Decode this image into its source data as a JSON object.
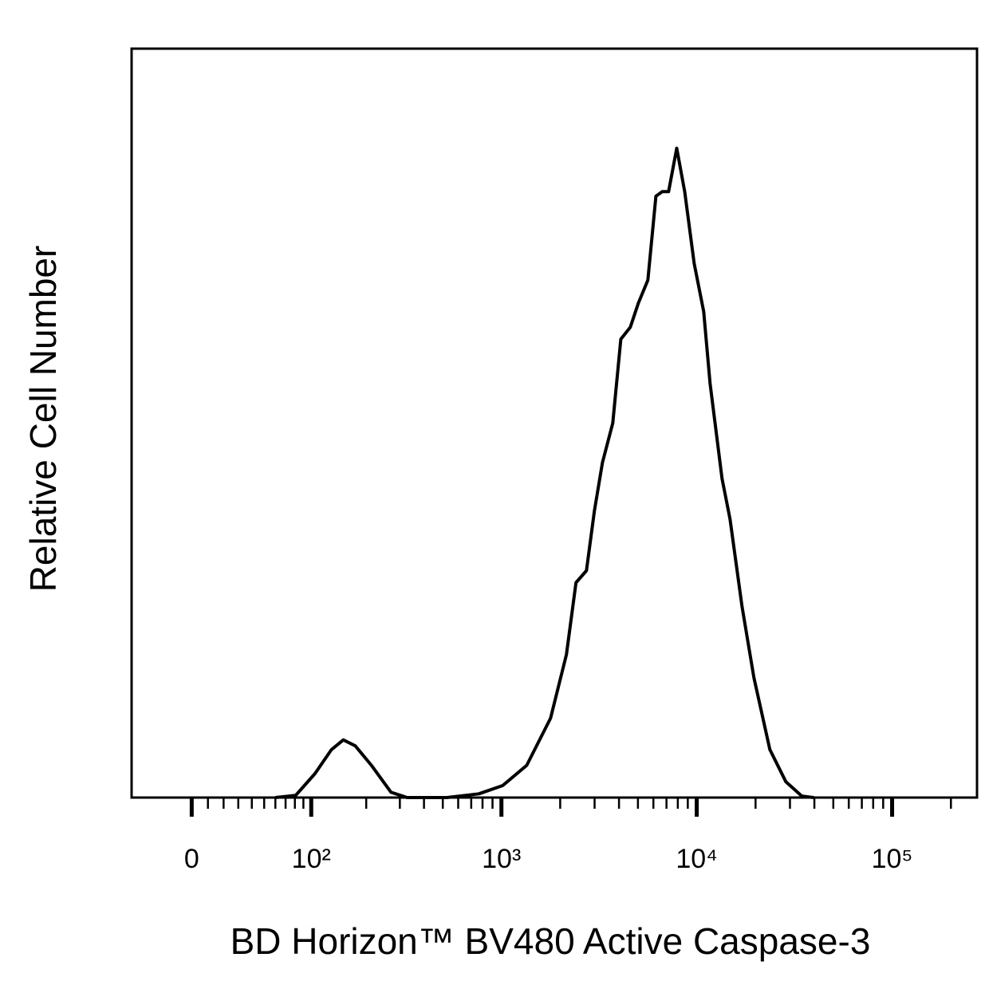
{
  "chart_data": {
    "type": "line",
    "x_axis_label": "BD Horizon™ BV480 Active Caspase-3",
    "y_axis_label": "Relative Cell Number",
    "xscale": "asinh",
    "asinh_cofactor": 52,
    "xlim": [
      -40,
      272000
    ],
    "ylim": [
      0,
      100
    ],
    "xticks": [
      0,
      {
        "value": 100,
        "label": "10²"
      },
      {
        "value": 1000,
        "label": "10³"
      },
      {
        "value": 10000,
        "label": "10⁴"
      },
      {
        "value": 100000,
        "label": "10⁵"
      }
    ],
    "xminorticks": [
      10,
      20,
      30,
      40,
      50,
      60,
      70,
      80,
      90,
      200,
      300,
      400,
      500,
      600,
      700,
      800,
      900,
      2000,
      3000,
      4000,
      5000,
      6000,
      7000,
      8000,
      9000,
      20000,
      30000,
      40000,
      50000,
      60000,
      70000,
      80000,
      90000,
      200000
    ],
    "series": [
      {
        "color": "#000000",
        "x": [
          60,
          81,
          105,
          130,
          151,
          175,
          213,
          270,
          327,
          525,
          766,
          1014,
          1347,
          1785,
          2153,
          2410,
          2725,
          2995,
          3290,
          3715,
          4085,
          4570,
          5020,
          5620,
          6180,
          6660,
          7180,
          7900,
          8680,
          9700,
          10850,
          11700,
          13470,
          14800,
          17050,
          19620,
          23680,
          28600,
          34500,
          39700
        ],
        "values": [
          0,
          0.3,
          3.2,
          6.4,
          7.7,
          6.9,
          4.3,
          0.7,
          0,
          0,
          0.5,
          1.6,
          4.3,
          10.6,
          19.1,
          28.7,
          30.3,
          38.3,
          44.7,
          50,
          61.2,
          62.8,
          66,
          69.1,
          80.3,
          80.9,
          80.9,
          86.7,
          80.9,
          71.3,
          64.9,
          55.3,
          42.6,
          37.2,
          25.5,
          16,
          6.4,
          2.1,
          0.2,
          0
        ]
      }
    ]
  }
}
